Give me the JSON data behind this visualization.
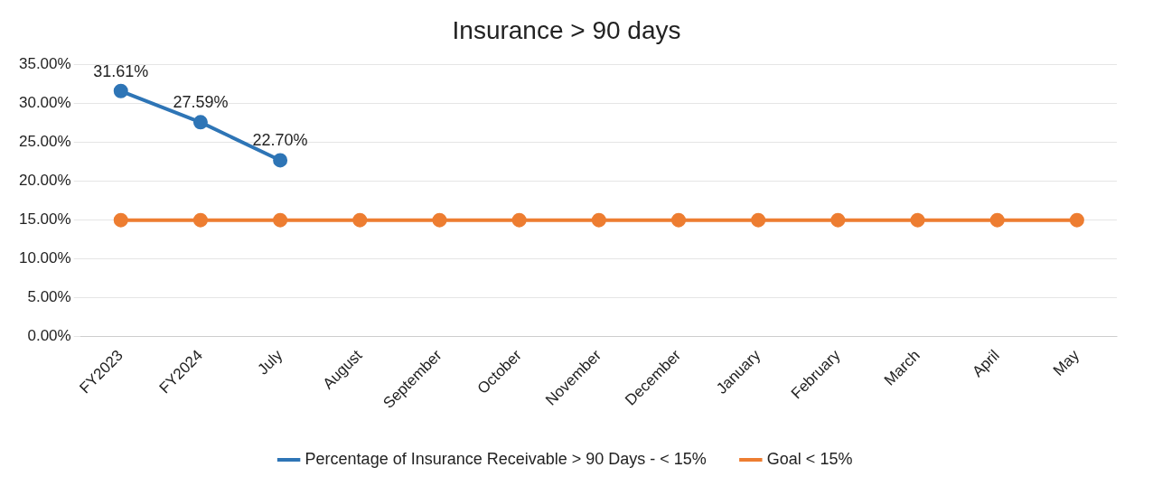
{
  "chart_data": {
    "type": "line",
    "title": "Insurance > 90 days",
    "categories": [
      "FY2023",
      "FY2024",
      "July",
      "August",
      "September",
      "October",
      "November",
      "December",
      "January",
      "February",
      "March",
      "April",
      "May"
    ],
    "series": [
      {
        "name": "Percentage of Insurance Receivable > 90 Days - < 15%",
        "color": "#2e75b6",
        "values": [
          31.61,
          27.59,
          22.7,
          null,
          null,
          null,
          null,
          null,
          null,
          null,
          null,
          null,
          null
        ],
        "value_labels": [
          "31.61%",
          "27.59%",
          "22.70%",
          null,
          null,
          null,
          null,
          null,
          null,
          null,
          null,
          null,
          null
        ]
      },
      {
        "name": "Goal < 15%",
        "color": "#ed7d31",
        "values": [
          15,
          15,
          15,
          15,
          15,
          15,
          15,
          15,
          15,
          15,
          15,
          15,
          15
        ]
      }
    ],
    "ylim": [
      0,
      35
    ],
    "yticks": [
      {
        "value": 0,
        "label": "0.00%"
      },
      {
        "value": 5,
        "label": "5.00%"
      },
      {
        "value": 10,
        "label": "10.00%"
      },
      {
        "value": 15,
        "label": "15.00%"
      },
      {
        "value": 20,
        "label": "20.00%"
      },
      {
        "value": 25,
        "label": "25.00%"
      },
      {
        "value": 30,
        "label": "30.00%"
      },
      {
        "value": 35,
        "label": "35.00%"
      }
    ],
    "grid": "y",
    "legend": "bottom",
    "marker": "circle",
    "line_style": "solid"
  }
}
